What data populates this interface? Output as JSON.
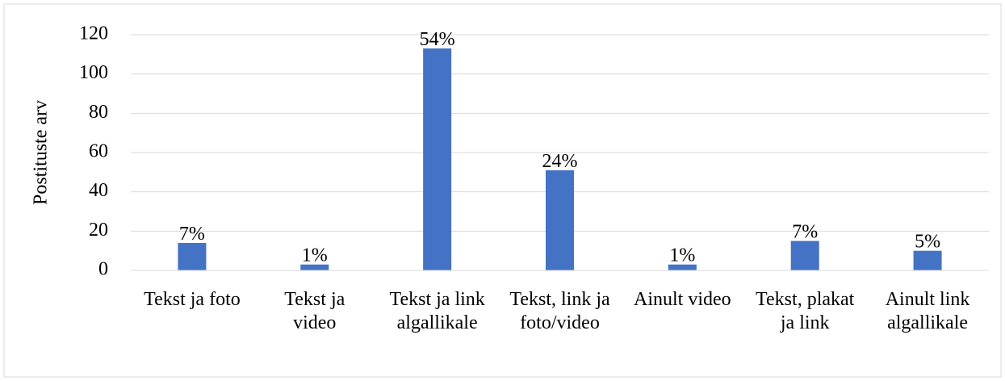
{
  "chart_data": {
    "type": "bar",
    "y_label": "Postituste arv",
    "categories": [
      "Tekst ja foto",
      "Tekst ja video",
      "Tekst ja link algallikale",
      "Tekst, link ja foto/video",
      "Ainult video",
      "Tekst, plakat ja link",
      "Ainult link algallikale"
    ],
    "values": [
      14,
      3,
      113,
      51,
      3,
      15,
      10
    ],
    "value_labels": [
      "7%",
      "1%",
      "54%",
      "24%",
      "1%",
      "7%",
      "5%"
    ],
    "color": "#4472c4",
    "ylim": [
      0,
      120
    ],
    "yticks": [
      0,
      20,
      40,
      60,
      80,
      100,
      120
    ],
    "grid": true
  }
}
